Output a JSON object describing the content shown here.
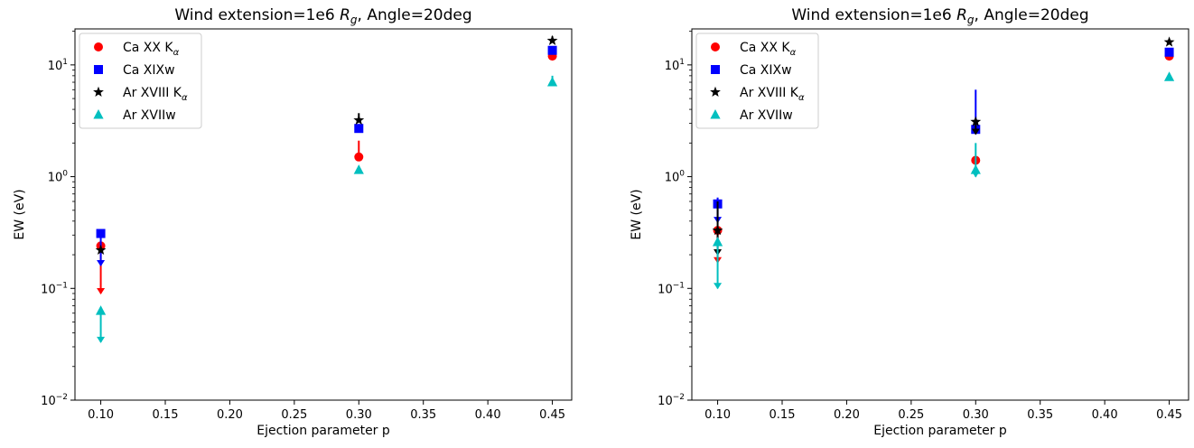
{
  "chart_data": [
    {
      "type": "scatter",
      "title_prefix": "Wind extension=1e6 ",
      "title_sym": "R",
      "title_sub": "g",
      "title_suffix": ", Angle=20deg",
      "xlabel": "Ejection parameter p",
      "ylabel": "EW (eV)",
      "yscale": "log",
      "xlim": [
        0.08,
        0.465
      ],
      "ylim": [
        0.01,
        21
      ],
      "xticks": [
        "0.10",
        "0.15",
        "0.20",
        "0.25",
        "0.30",
        "0.35",
        "0.40",
        "0.45"
      ],
      "yticks": [
        {
          "base": "10",
          "exp": "−2",
          "value": 0.01
        },
        {
          "base": "10",
          "exp": "−1",
          "value": 0.1
        },
        {
          "base": "10",
          "exp": "0",
          "value": 1
        },
        {
          "base": "10",
          "exp": "1",
          "value": 10
        }
      ],
      "grid": false,
      "legend_position": "upper left",
      "series": [
        {
          "name_main": "Ca XX K",
          "name_sub": "α",
          "color": "#ff0000",
          "marker": "circle",
          "x": [
            0.1,
            0.3,
            0.45
          ],
          "y": [
            0.24,
            1.5,
            12.0
          ],
          "err_low": [
            0.09,
            1.5,
            12.0
          ],
          "err_high": [
            0.24,
            2.1,
            12.0
          ]
        },
        {
          "name_main": "Ca XIXw",
          "name_sub": "",
          "color": "#0000ff",
          "marker": "square",
          "x": [
            0.1,
            0.3,
            0.45
          ],
          "y": [
            0.31,
            2.7,
            13.5
          ],
          "err_low": [
            0.16,
            2.7,
            13.5
          ],
          "err_high": [
            0.31,
            2.7,
            13.5
          ]
        },
        {
          "name_main": "Ar XVIII K",
          "name_sub": "α",
          "color": "#000000",
          "marker": "star",
          "x": [
            0.1,
            0.3,
            0.45
          ],
          "y": [
            0.22,
            3.2,
            16.5
          ],
          "err_low": [
            0.22,
            3.2,
            16.5
          ],
          "err_high": [
            0.22,
            3.7,
            18.0
          ]
        },
        {
          "name_main": "Ar XVIIw",
          "name_sub": "",
          "color": "#00bfbf",
          "marker": "triangle",
          "x": [
            0.1,
            0.3,
            0.45
          ],
          "y": [
            0.063,
            1.15,
            7.0
          ],
          "err_low": [
            0.033,
            1.15,
            7.0
          ],
          "err_high": [
            0.063,
            1.15,
            8.0
          ]
        }
      ]
    },
    {
      "type": "scatter",
      "title_prefix": "Wind extension=1e6 ",
      "title_sym": "R",
      "title_sub": "g",
      "title_suffix": ", Angle=20deg",
      "xlabel": "Ejection parameter p",
      "ylabel": "EW (eV)",
      "yscale": "log",
      "xlim": [
        0.08,
        0.465
      ],
      "ylim": [
        0.01,
        21
      ],
      "xticks": [
        "0.10",
        "0.15",
        "0.20",
        "0.25",
        "0.30",
        "0.35",
        "0.40",
        "0.45"
      ],
      "yticks": [
        {
          "base": "10",
          "exp": "−2",
          "value": 0.01
        },
        {
          "base": "10",
          "exp": "−1",
          "value": 0.1
        },
        {
          "base": "10",
          "exp": "0",
          "value": 1
        },
        {
          "base": "10",
          "exp": "1",
          "value": 10
        }
      ],
      "grid": false,
      "legend_position": "upper left",
      "series": [
        {
          "name_main": "Ca XX K",
          "name_sub": "α",
          "color": "#ff0000",
          "marker": "circle",
          "x": [
            0.1,
            0.3,
            0.45
          ],
          "y": [
            0.33,
            1.4,
            12.0
          ],
          "err_low": [
            0.17,
            1.4,
            12.0
          ],
          "err_high": [
            0.33,
            1.4,
            12.0
          ]
        },
        {
          "name_main": "Ca XIXw",
          "name_sub": "",
          "color": "#0000ff",
          "marker": "square",
          "x": [
            0.1,
            0.3,
            0.45
          ],
          "y": [
            0.57,
            2.65,
            13.0
          ],
          "err_low": [
            0.39,
            2.65,
            13.0
          ],
          "err_high": [
            0.65,
            6.0,
            13.0
          ]
        },
        {
          "name_main": "Ar XVIII K",
          "name_sub": "α",
          "color": "#000000",
          "marker": "star",
          "x": [
            0.1,
            0.3,
            0.45
          ],
          "y": [
            0.33,
            3.1,
            16.0
          ],
          "err_low": [
            0.2,
            2.4,
            16.0
          ],
          "err_high": [
            0.6,
            3.1,
            16.0
          ]
        },
        {
          "name_main": "Ar XVIIw",
          "name_sub": "",
          "color": "#00bfbf",
          "marker": "triangle",
          "x": [
            0.1,
            0.3,
            0.45
          ],
          "y": [
            0.26,
            1.15,
            7.8
          ],
          "err_low": [
            0.1,
            1.0,
            7.8
          ],
          "err_high": [
            0.26,
            2.0,
            7.8
          ]
        }
      ]
    }
  ]
}
